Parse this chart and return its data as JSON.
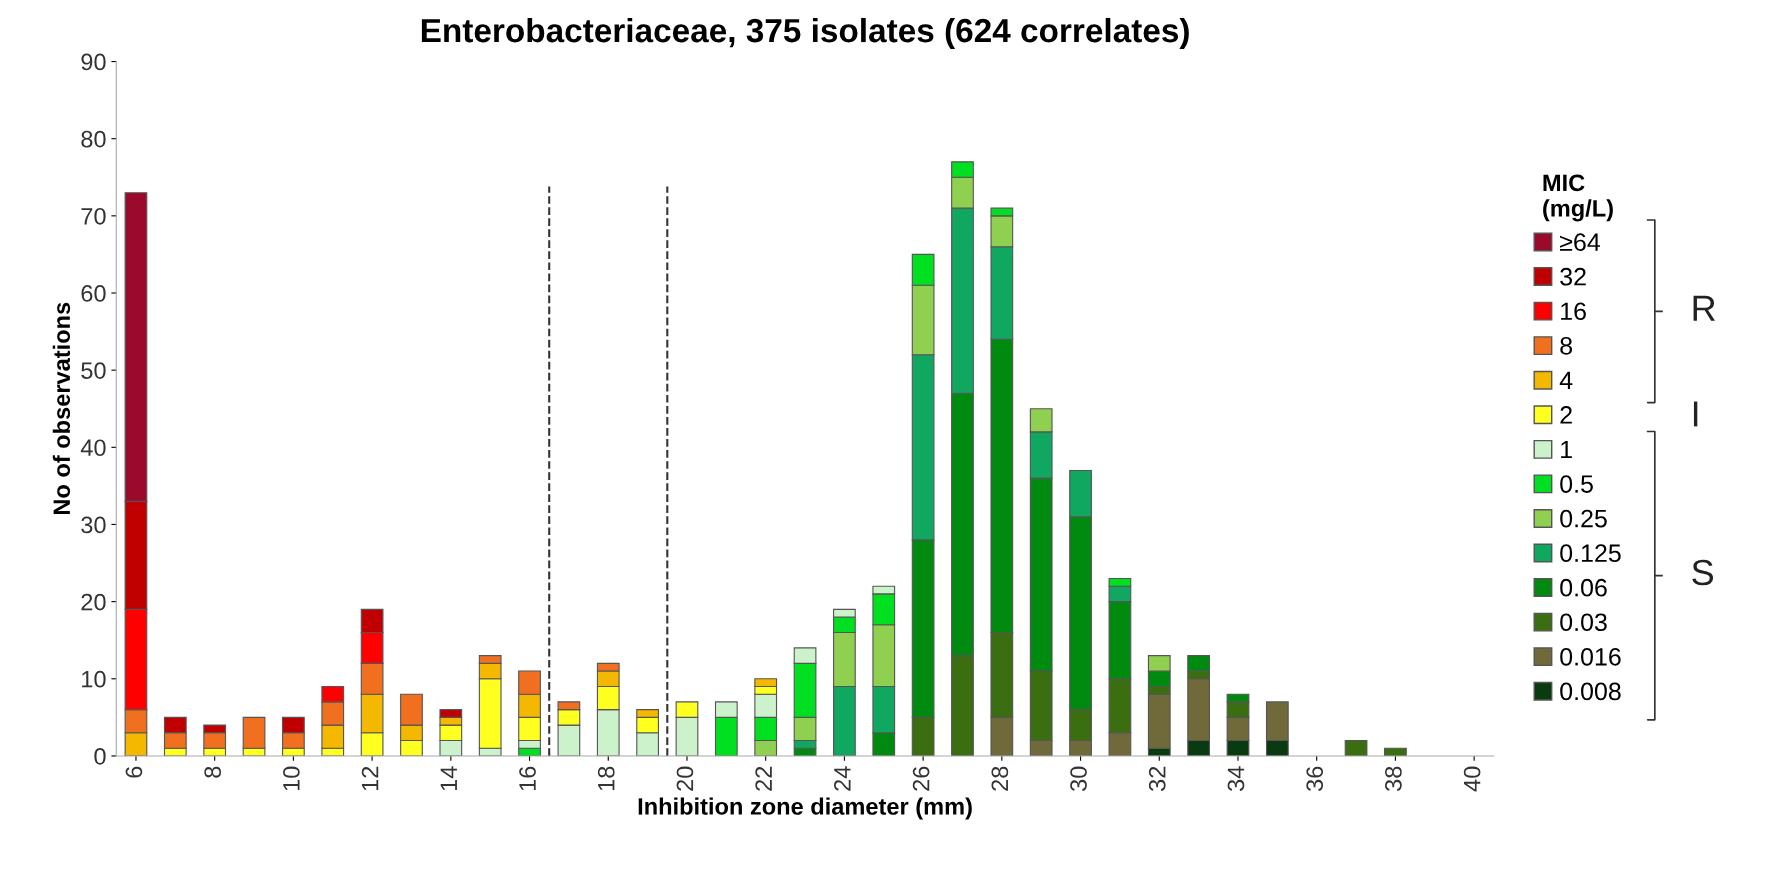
{
  "chart_data": {
    "type": "bar",
    "stacked": true,
    "title": "Enterobacteriaceae, 375 isolates (624 correlates)",
    "xlabel": "Inhibition zone diameter (mm)",
    "ylabel": "No of observations",
    "legend_title": "MIC\n(mg/L)",
    "x": [
      6,
      7,
      8,
      9,
      10,
      11,
      12,
      13,
      14,
      15,
      16,
      17,
      18,
      19,
      20,
      21,
      22,
      23,
      24,
      25,
      26,
      27,
      28,
      29,
      30,
      31,
      32,
      33,
      34,
      35,
      36,
      37,
      38,
      39,
      40
    ],
    "xlim": [
      5.5,
      40.5
    ],
    "xticks": [
      6,
      8,
      10,
      12,
      14,
      16,
      18,
      20,
      22,
      24,
      26,
      28,
      30,
      32,
      34,
      36,
      38,
      40
    ],
    "ylim": [
      0,
      90
    ],
    "yticks": [
      0,
      10,
      20,
      30,
      40,
      50,
      60,
      70,
      80,
      90
    ],
    "grid": false,
    "legend": "right",
    "series": [
      {
        "name": "0.008",
        "color": "#0a3a10",
        "values": [
          0,
          0,
          0,
          0,
          0,
          0,
          0,
          0,
          0,
          0,
          0,
          0,
          0,
          0,
          0,
          0,
          0,
          0,
          0,
          0,
          0,
          0,
          0,
          0,
          0,
          0,
          1,
          2,
          2,
          2,
          0,
          0,
          0,
          0,
          0
        ]
      },
      {
        "name": "0.016",
        "color": "#706a3a",
        "values": [
          0,
          0,
          0,
          0,
          0,
          0,
          0,
          0,
          0,
          0,
          0,
          0,
          0,
          0,
          0,
          0,
          0,
          0,
          0,
          0,
          0,
          0,
          5,
          2,
          2,
          3,
          7,
          8,
          3,
          5,
          0,
          0,
          0,
          0,
          0
        ]
      },
      {
        "name": "0.03",
        "color": "#3a6e10",
        "values": [
          0,
          0,
          0,
          0,
          0,
          0,
          0,
          0,
          0,
          0,
          0,
          0,
          0,
          0,
          0,
          0,
          0,
          0,
          0,
          0,
          5,
          13,
          11,
          9,
          4,
          7,
          1,
          1,
          2,
          0,
          0,
          2,
          1,
          0,
          0
        ]
      },
      {
        "name": "0.06",
        "color": "#008a10",
        "values": [
          0,
          0,
          0,
          0,
          0,
          0,
          0,
          0,
          0,
          0,
          0,
          0,
          0,
          0,
          0,
          0,
          0,
          1,
          0,
          3,
          23,
          34,
          38,
          25,
          25,
          10,
          2,
          2,
          1,
          0,
          0,
          0,
          0,
          0,
          0
        ]
      },
      {
        "name": "0.125",
        "color": "#10a860",
        "values": [
          0,
          0,
          0,
          0,
          0,
          0,
          0,
          0,
          0,
          0,
          0,
          0,
          0,
          0,
          0,
          0,
          0,
          1,
          9,
          6,
          24,
          24,
          12,
          6,
          6,
          2,
          0,
          0,
          0,
          0,
          0,
          0,
          0,
          0,
          0
        ]
      },
      {
        "name": "0.25",
        "color": "#90d050",
        "values": [
          0,
          0,
          0,
          0,
          0,
          0,
          0,
          0,
          0,
          0,
          0,
          0,
          0,
          0,
          0,
          0,
          2,
          3,
          7,
          8,
          9,
          4,
          4,
          3,
          0,
          0,
          2,
          0,
          0,
          0,
          0,
          0,
          0,
          0,
          0
        ]
      },
      {
        "name": "0.5",
        "color": "#00e020",
        "values": [
          0,
          0,
          0,
          0,
          0,
          0,
          0,
          0,
          0,
          0,
          1,
          0,
          0,
          0,
          0,
          5,
          3,
          7,
          2,
          4,
          4,
          2,
          1,
          0,
          0,
          1,
          0,
          0,
          0,
          0,
          0,
          0,
          0,
          0,
          0
        ]
      },
      {
        "name": "1",
        "color": "#ccf2cc",
        "values": [
          0,
          0,
          0,
          0,
          0,
          0,
          0,
          0,
          2,
          1,
          1,
          4,
          6,
          3,
          5,
          2,
          3,
          2,
          1,
          1,
          0,
          0,
          0,
          0,
          0,
          0,
          0,
          0,
          0,
          0,
          0,
          0,
          0,
          0,
          0
        ]
      },
      {
        "name": "2",
        "color": "#ffff20",
        "values": [
          0,
          1,
          1,
          1,
          1,
          1,
          3,
          2,
          2,
          9,
          3,
          2,
          3,
          2,
          2,
          0,
          1,
          0,
          0,
          0,
          0,
          0,
          0,
          0,
          0,
          0,
          0,
          0,
          0,
          0,
          0,
          0,
          0,
          0,
          0
        ]
      },
      {
        "name": "4",
        "color": "#f5b800",
        "values": [
          3,
          0,
          0,
          0,
          0,
          3,
          5,
          2,
          1,
          2,
          3,
          0,
          2,
          1,
          0,
          0,
          1,
          0,
          0,
          0,
          0,
          0,
          0,
          0,
          0,
          0,
          0,
          0,
          0,
          0,
          0,
          0,
          0,
          0,
          0
        ]
      },
      {
        "name": "8",
        "color": "#f07020",
        "values": [
          3,
          2,
          2,
          4,
          2,
          3,
          4,
          4,
          0,
          1,
          3,
          1,
          1,
          0,
          0,
          0,
          0,
          0,
          0,
          0,
          0,
          0,
          0,
          0,
          0,
          0,
          0,
          0,
          0,
          0,
          0,
          0,
          0,
          0,
          0
        ]
      },
      {
        "name": "16",
        "color": "#ff0000",
        "values": [
          13,
          0,
          0,
          0,
          0,
          2,
          4,
          0,
          0,
          0,
          0,
          0,
          0,
          0,
          0,
          0,
          0,
          0,
          0,
          0,
          0,
          0,
          0,
          0,
          0,
          0,
          0,
          0,
          0,
          0,
          0,
          0,
          0,
          0,
          0
        ]
      },
      {
        "name": "32",
        "color": "#c00000",
        "values": [
          14,
          2,
          1,
          0,
          2,
          0,
          3,
          0,
          1,
          0,
          0,
          0,
          0,
          0,
          0,
          0,
          0,
          0,
          0,
          0,
          0,
          0,
          0,
          0,
          0,
          0,
          0,
          0,
          0,
          0,
          0,
          0,
          0,
          0,
          0
        ]
      },
      {
        "name": "≥64",
        "color": "#9b0a2a",
        "values": [
          40,
          0,
          0,
          0,
          0,
          0,
          0,
          0,
          0,
          0,
          0,
          0,
          0,
          0,
          0,
          0,
          0,
          0,
          0,
          0,
          0,
          0,
          0,
          0,
          0,
          0,
          0,
          0,
          0,
          0,
          0,
          0,
          0,
          0,
          0
        ]
      }
    ],
    "ref_lines": [
      {
        "axis": "x",
        "value": 16.5,
        "color": "#333333",
        "line_style": "dashed"
      },
      {
        "axis": "x",
        "value": 19.5,
        "color": "#333333",
        "line_style": "dashed"
      }
    ],
    "annotations": [
      "R",
      "I",
      "S"
    ]
  }
}
